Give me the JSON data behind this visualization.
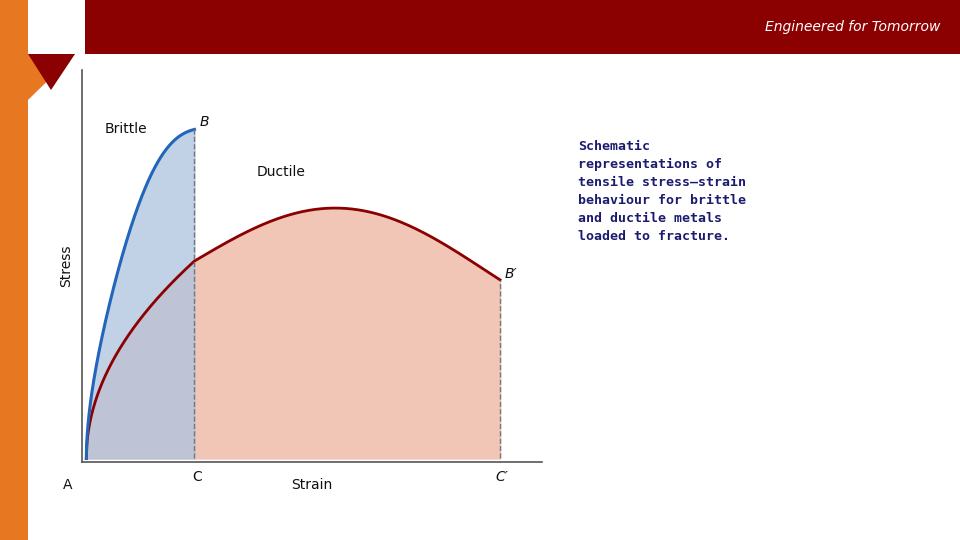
{
  "background_color": "#ffffff",
  "header_bg": "#8B0000",
  "header_text": "Engineered for Tomorrow",
  "header_text_color": "#ffffff",
  "orange_border_color": "#E87722",
  "title_text": "Schematic\nrepresentations of\ntensile stress–strain\nbehaviour for brittle\nand ductile metals\nloaded to fracture.",
  "title_color": "#1a1a6e",
  "ylabel": "Stress",
  "xlabel": "Strain",
  "brittle_label": "Brittle",
  "ductile_label": "Ductile",
  "brittle_line_color": "#2266bb",
  "brittle_fill_color": "#adc4e0",
  "ductile_line_color": "#8B0000",
  "ductile_fill_color": "#f0c0b0",
  "dashed_line_color": "#777777",
  "point_A": "A",
  "point_B": "B",
  "point_Bprime": "B′",
  "point_C": "C",
  "point_Cprime": "C′",
  "label_color": "#111111",
  "axis_color": "#555555",
  "title_fontsize": 9.5,
  "label_fontsize": 10,
  "axis_label_fontsize": 10
}
